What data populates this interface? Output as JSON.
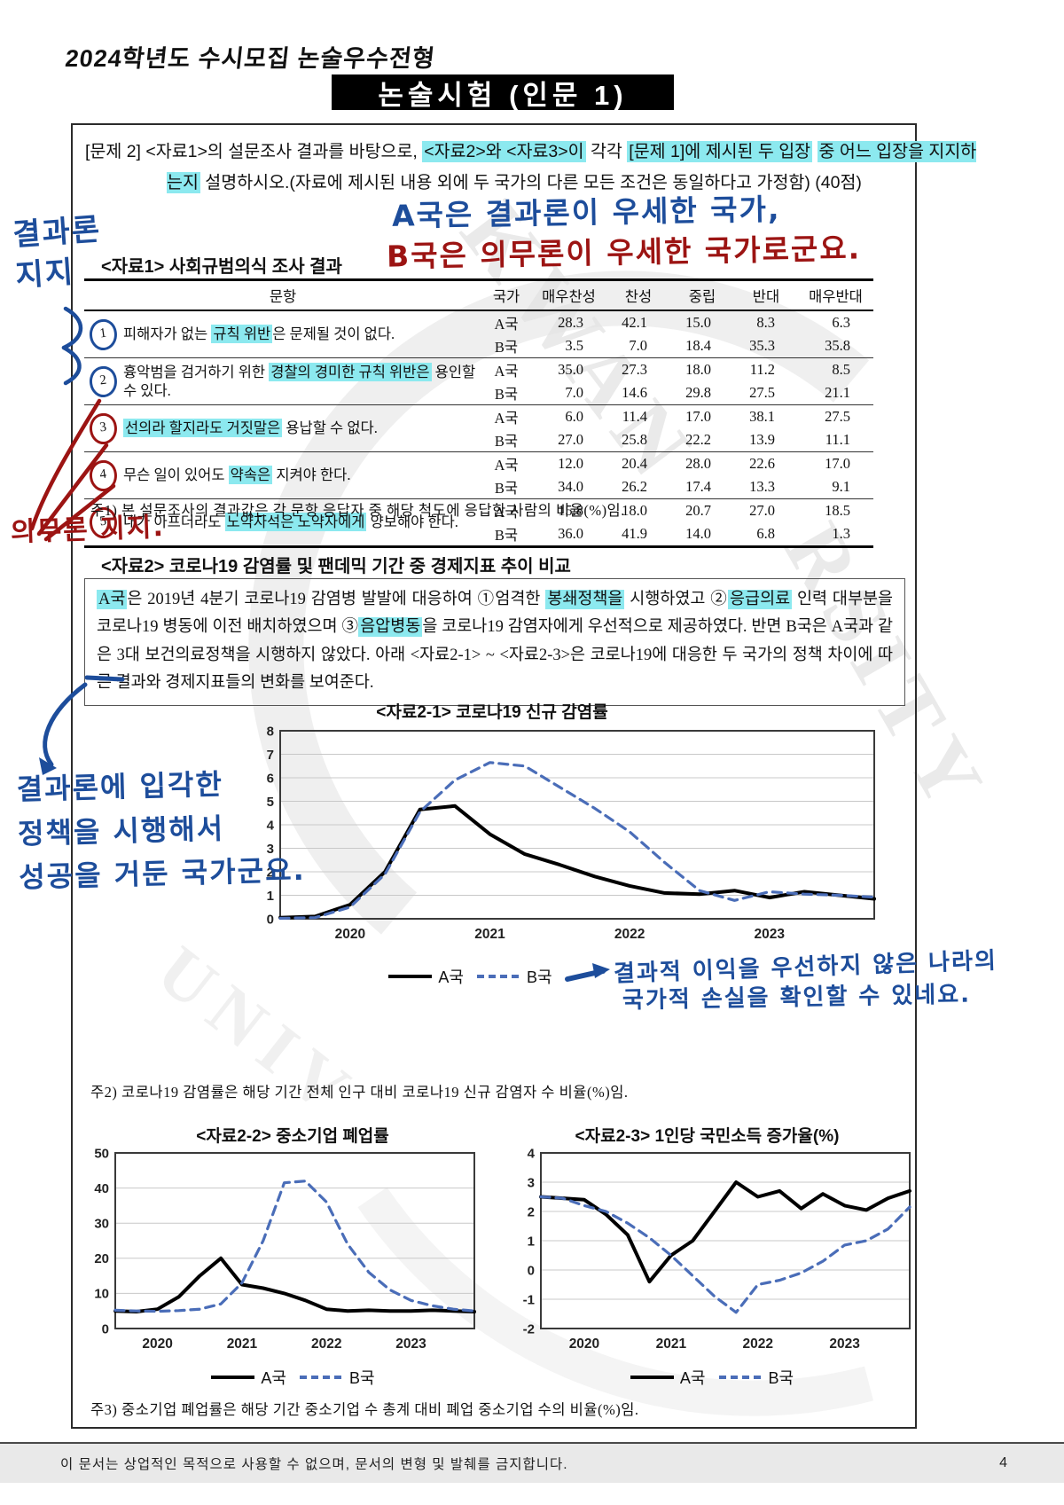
{
  "page": {
    "header": "2024학년도 수시모집 논술우수전형",
    "title": "논술시험 (인문 1)",
    "footer_note": "이 문서는 상업적인 목적으로 사용할 수 없으며, 문서의 변형 및 발췌를 금지합니다.",
    "page_number": "4"
  },
  "problem": {
    "segments": [
      {
        "t": "[문제 2] <자료1>의 설문조사 결과를 바탕으로, ",
        "hl": false
      },
      {
        "t": "<자료2>와 <자료3>이",
        "hl": true
      },
      {
        "t": " 각각 ",
        "hl": false
      },
      {
        "t": "[문제 1]에 제시된 두 입장",
        "hl": true
      },
      {
        "t": " ",
        "hl": false
      },
      {
        "t": "중 어느 입장을 지지하는지",
        "hl": true
      },
      {
        "t": " 설명하시오.(자료에 제시된 내용 외에 두 국가의 다른 모든 조건은 동일하다고 가정함) (40점)",
        "hl": false
      }
    ]
  },
  "annotations": {
    "margin_top_blue": "결과론\n지지",
    "margin_mid_red": "의무론 지지.",
    "top_line_blue": "A국은 결과론이 우세한 국가,",
    "top_line_red": "B국은 의무론이 우세한 국가로군요.",
    "left_chart_blue": "결과론에 입각한\n정책을 시행해서\n성공을 거둔 국가군요.",
    "chart_note_line1": "결과적 이익을 우선하지 않은 나라의",
    "chart_note_line2": "국가적 손실을 확인할 수 있네요."
  },
  "table": {
    "title": "<자료1> 사회규범의식 조사 결과",
    "headers": [
      "문항",
      "국가",
      "매우찬성",
      "찬성",
      "중립",
      "반대",
      "매우반대"
    ],
    "country_a": "A국",
    "country_b": "B국",
    "rows": [
      {
        "num": "1",
        "circle": "blue",
        "segments": [
          {
            "t": "피해자가 없는 ",
            "hl": false
          },
          {
            "t": "규칙 위반",
            "hl": true
          },
          {
            "t": "은 문제될 것이 없다.",
            "hl": false
          }
        ],
        "a": [
          "28.3",
          "42.1",
          "15.0",
          "8.3",
          "6.3"
        ],
        "b": [
          "3.5",
          "7.0",
          "18.4",
          "35.3",
          "35.8"
        ]
      },
      {
        "num": "2",
        "circle": "blue",
        "segments": [
          {
            "t": "흉악범을 검거하기 위한 ",
            "hl": false
          },
          {
            "t": "경찰의 경미한 규칙 위반은",
            "hl": true
          },
          {
            "t": " 용인할 수 있다.",
            "hl": false
          }
        ],
        "a": [
          "35.0",
          "27.3",
          "18.0",
          "11.2",
          "8.5"
        ],
        "b": [
          "7.0",
          "14.6",
          "29.8",
          "27.5",
          "21.1"
        ]
      },
      {
        "num": "3",
        "circle": "red",
        "segments": [
          {
            "t": "선의라 할지라도 거짓말은",
            "hl": true
          },
          {
            "t": " 용납할 수 없다.",
            "hl": false
          }
        ],
        "a": [
          "6.0",
          "11.4",
          "17.0",
          "38.1",
          "27.5"
        ],
        "b": [
          "27.0",
          "25.8",
          "22.2",
          "13.9",
          "11.1"
        ]
      },
      {
        "num": "4",
        "circle": "red",
        "segments": [
          {
            "t": "무슨 일이 있어도 ",
            "hl": false
          },
          {
            "t": "약속은",
            "hl": true
          },
          {
            "t": " 지켜야 한다.",
            "hl": false
          }
        ],
        "a": [
          "12.0",
          "20.4",
          "28.0",
          "22.6",
          "17.0"
        ],
        "b": [
          "34.0",
          "26.2",
          "17.4",
          "13.3",
          "9.1"
        ]
      },
      {
        "num": "5",
        "circle": "red",
        "segments": [
          {
            "t": "내가 아프더라도 ",
            "hl": false
          },
          {
            "t": "노약자석은 노약자에게",
            "hl": true
          },
          {
            "t": " 양보해야 한다.",
            "hl": false
          }
        ],
        "a": [
          "15.8",
          "18.0",
          "20.7",
          "27.0",
          "18.5"
        ],
        "b": [
          "36.0",
          "41.9",
          "14.0",
          "6.8",
          "1.3"
        ]
      }
    ],
    "note": "주1) 본 설문조사의 결과값은 각 문항 응답자 중 해당 척도에 응답한 사람의 비율(%)임."
  },
  "source2": {
    "title": "<자료2> 코로나19 감염률 및 팬데믹 기간 중 경제지표 추이 비교",
    "segments": [
      {
        "t": "A국",
        "hl": true
      },
      {
        "t": "은 2019년 4분기 코로나19 감염병 발발에 대응하여 ①엄격한 ",
        "hl": false
      },
      {
        "t": "봉쇄정책을",
        "hl": true
      },
      {
        "t": " 시행하였고 ②",
        "hl": false
      },
      {
        "t": "응급의료",
        "hl": true
      },
      {
        "t": " 인력 대부분을 코로나19 병동에 이전 배치하였으며 ③",
        "hl": false
      },
      {
        "t": "음압병동",
        "hl": true
      },
      {
        "t": "을 코로나19 감염자에게 우선적으로 제공하였다. 반면 B국은 A국과 같은 3대 보건의료정책을 시행하지 않았다. 아래 <자료2-1> ~ <자료2-3>은 코로나19에 대응한 두 국가의 정책 차이에 따른 결과와 경제지표들의 변화를 보여준다.",
        "hl": false
      }
    ]
  },
  "legend": {
    "a": "A국",
    "b": "B국"
  },
  "notes": {
    "note2": "주2) 코로나19 감염률은 해당 기간 전체 인구 대비 코로나19 신규 감염자 수 비율(%)임.",
    "note3": "주3) 중소기업 폐업률은 해당 기간 중소기업 수 총계 대비 폐업 중소기업 수의 비율(%)임."
  },
  "colors": {
    "highlight": "#8ce9ef",
    "pen_blue": "#1d4d9b",
    "pen_red": "#9c1413",
    "series_a": "#000000",
    "series_b": "#4a6db8"
  },
  "chart_data": [
    {
      "type": "line",
      "title": "<자료2-1> 코로나19 신규 감염률",
      "x_tick_labels": [
        "2020",
        "2021",
        "2022",
        "2023"
      ],
      "x_tick_positions": [
        2,
        6,
        10,
        14
      ],
      "x_note": "quarterly points from 2019Q3 to 2023Q4",
      "ylim": [
        0,
        8
      ],
      "yticks": [
        0,
        1,
        2,
        3,
        4,
        5,
        6,
        7,
        8
      ],
      "grid": true,
      "legend_position": "bottom",
      "series": [
        {
          "name": "A국",
          "style": "solid",
          "color": "#000000",
          "values": [
            0.05,
            0.1,
            0.6,
            2.0,
            4.65,
            4.8,
            3.6,
            2.75,
            2.3,
            1.8,
            1.4,
            1.1,
            1.05,
            1.2,
            0.9,
            1.15,
            1.0,
            0.85
          ]
        },
        {
          "name": "B국",
          "style": "dashed",
          "color": "#4a6db8",
          "values": [
            0.02,
            0.05,
            0.5,
            1.9,
            4.55,
            5.9,
            6.65,
            6.5,
            5.6,
            4.7,
            3.7,
            2.4,
            1.2,
            0.78,
            1.15,
            1.05,
            1.0,
            0.92
          ]
        }
      ]
    },
    {
      "type": "line",
      "title": "<자료2-2> 중소기업 폐업률",
      "x_tick_labels": [
        "2020",
        "2021",
        "2022",
        "2023"
      ],
      "x_tick_positions": [
        2,
        6,
        10,
        14
      ],
      "ylim": [
        0,
        50
      ],
      "yticks": [
        0,
        10,
        20,
        30,
        40,
        50
      ],
      "grid": true,
      "legend_position": "bottom",
      "series": [
        {
          "name": "A국",
          "style": "solid",
          "color": "#000000",
          "values": [
            5.0,
            4.8,
            5.5,
            9.0,
            15.0,
            20.0,
            12.5,
            11.5,
            10.0,
            8.0,
            5.5,
            5.0,
            5.2,
            5.0,
            5.0,
            5.2,
            5.0,
            4.8
          ]
        },
        {
          "name": "B국",
          "style": "dashed",
          "color": "#4a6db8",
          "values": [
            5.2,
            5.0,
            4.9,
            5.1,
            5.5,
            7.0,
            13.0,
            25.0,
            41.5,
            42.0,
            36.0,
            24.0,
            16.0,
            11.0,
            8.0,
            6.5,
            5.5,
            5.0
          ]
        }
      ]
    },
    {
      "type": "line",
      "title": "<자료2-3> 1인당 국민소득 증가율(%)",
      "x_tick_labels": [
        "2020",
        "2021",
        "2022",
        "2023"
      ],
      "x_tick_positions": [
        2,
        6,
        10,
        14
      ],
      "ylim": [
        -2,
        4
      ],
      "yticks": [
        -2,
        -1,
        0,
        1,
        2,
        3,
        4
      ],
      "grid": true,
      "legend_position": "bottom",
      "series": [
        {
          "name": "A국",
          "style": "solid",
          "color": "#000000",
          "values": [
            2.5,
            2.45,
            2.4,
            1.9,
            1.2,
            -0.4,
            0.5,
            1.0,
            2.0,
            3.0,
            2.5,
            2.7,
            2.1,
            2.6,
            2.2,
            2.05,
            2.45,
            2.7
          ]
        },
        {
          "name": "B국",
          "style": "dashed",
          "color": "#4a6db8",
          "values": [
            2.5,
            2.45,
            2.2,
            2.0,
            1.6,
            1.1,
            0.5,
            -0.2,
            -0.9,
            -1.45,
            -0.5,
            -0.35,
            -0.1,
            0.3,
            0.85,
            1.0,
            1.4,
            2.15
          ]
        }
      ]
    }
  ]
}
